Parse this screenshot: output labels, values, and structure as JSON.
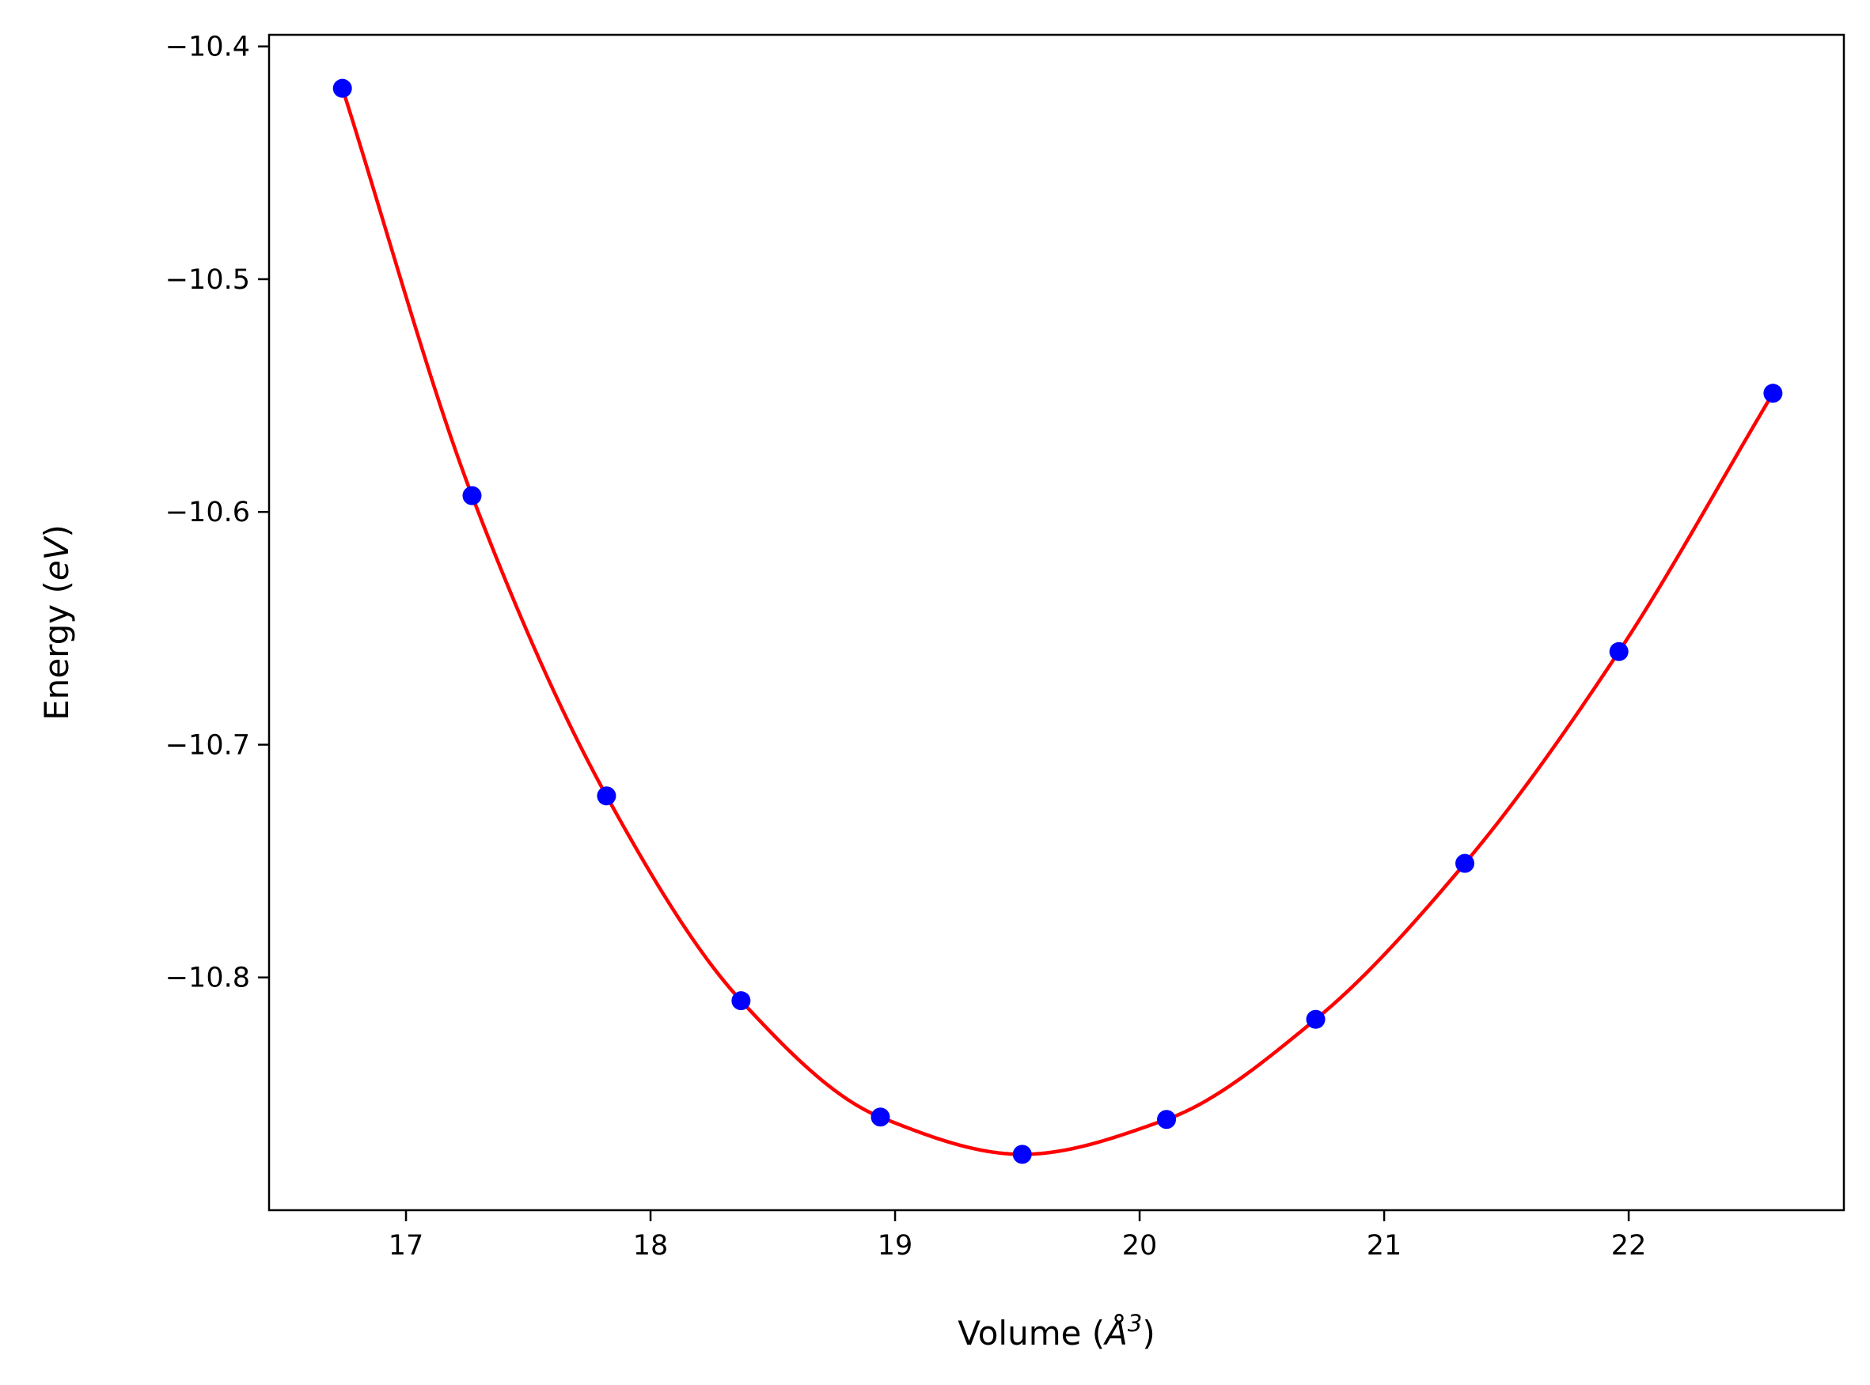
{
  "chart_data": {
    "type": "scatter",
    "title": "",
    "xlabel": {
      "prefix": "Volume (",
      "symbol": "Å",
      "superscript": "3",
      "suffix": ")"
    },
    "ylabel": {
      "prefix": "Energy (",
      "unit": "eV",
      "suffix": ")"
    },
    "xlim": [
      16.44,
      22.88
    ],
    "ylim": [
      -10.9,
      -10.395
    ],
    "xticks": [
      17,
      18,
      19,
      20,
      21,
      22
    ],
    "yticks": [
      -10.4,
      -10.5,
      -10.6,
      -10.7,
      -10.8
    ],
    "xtick_labels": [
      "17",
      "18",
      "19",
      "20",
      "21",
      "22"
    ],
    "ytick_labels": [
      "−10.4",
      "−10.5",
      "−10.6",
      "−10.7",
      "−10.8"
    ],
    "grid": false,
    "legend": false,
    "series": [
      {
        "kind": "points",
        "color": "#0000ff",
        "x": [
          16.74,
          17.27,
          17.82,
          18.37,
          18.94,
          19.52,
          20.11,
          20.72,
          21.33,
          21.96,
          22.59
        ],
        "y": [
          -10.418,
          -10.593,
          -10.722,
          -10.81,
          -10.86,
          -10.876,
          -10.861,
          -10.818,
          -10.751,
          -10.66,
          -10.549
        ]
      },
      {
        "kind": "curve",
        "color": "#ff0000",
        "x": [
          16.74,
          17.27,
          17.82,
          18.37,
          18.94,
          19.52,
          20.11,
          20.72,
          21.33,
          21.96,
          22.59
        ],
        "y": [
          -10.418,
          -10.593,
          -10.722,
          -10.81,
          -10.86,
          -10.876,
          -10.861,
          -10.818,
          -10.751,
          -10.66,
          -10.549
        ]
      }
    ]
  }
}
